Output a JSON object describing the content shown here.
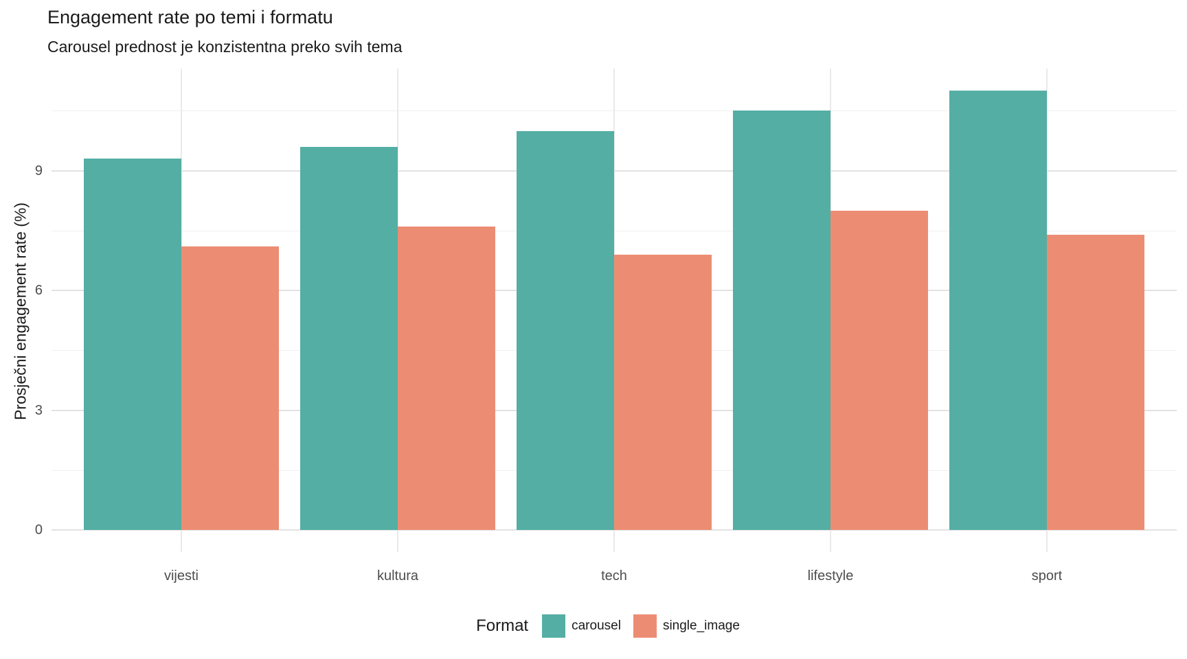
{
  "header": {
    "title": "Engagement rate po temi i formatu",
    "subtitle": "Carousel prednost je konzistentna preko svih tema"
  },
  "chart_data": {
    "type": "bar",
    "title": "Engagement rate po temi i formatu",
    "subtitle": "Carousel prednost je konzistentna preko svih tema",
    "categories": [
      "vijesti",
      "kultura",
      "tech",
      "lifestyle",
      "sport"
    ],
    "series": [
      {
        "name": "carousel",
        "color": "#54AEA4",
        "values": [
          9.3,
          9.6,
          10.0,
          10.5,
          11.0
        ]
      },
      {
        "name": "single_image",
        "color": "#EC8D73",
        "values": [
          7.1,
          7.6,
          6.9,
          8.0,
          7.4
        ]
      }
    ],
    "xlabel": "",
    "ylabel": "Prosječni engagement rate (%)",
    "ylim": [
      0,
      11.55
    ],
    "yticks": [
      0,
      3,
      6,
      9
    ],
    "yticks_minor": [
      1.5,
      4.5,
      7.5,
      10.5
    ],
    "bar_group_fraction": 0.9,
    "grid": true,
    "legend": {
      "title": "Format",
      "position": "bottom"
    }
  },
  "colors": {
    "background": "#FFFFFF",
    "grid_major": "#E2E2E2",
    "grid_minor": "#F0F0F0",
    "grid_vertical": "#E9E9E9",
    "tick_label": "#4D4D4D",
    "text": "#1A1A1A",
    "carousel": "#54AEA4",
    "single_image": "#EC8D73"
  }
}
